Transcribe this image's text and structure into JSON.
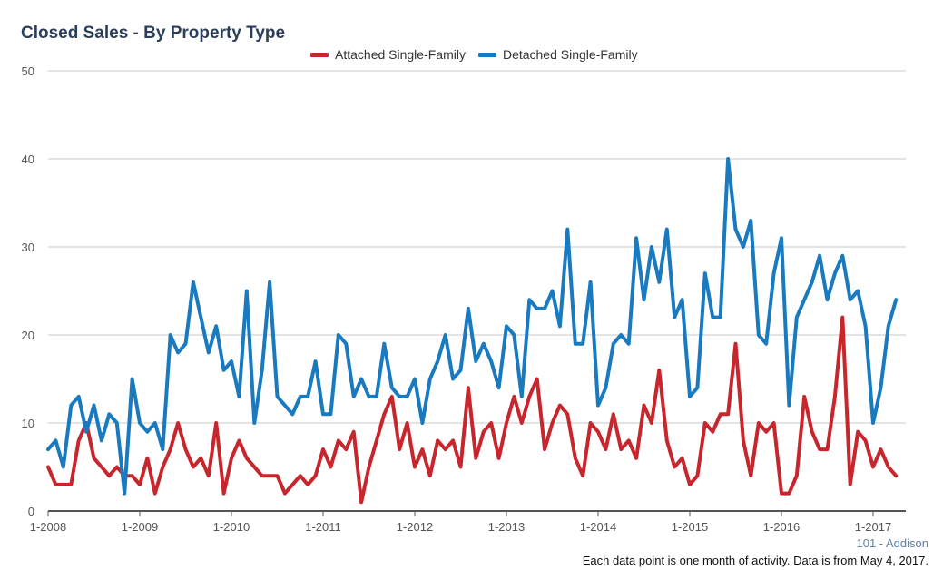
{
  "chart_data": {
    "type": "line",
    "title": "Closed Sales - By Property Type",
    "xlabel": "",
    "ylabel": "",
    "ylim": [
      0,
      50
    ],
    "yticks": [
      0,
      10,
      20,
      30,
      40,
      50
    ],
    "x_tick_labels": [
      "1-2008",
      "1-2009",
      "1-2010",
      "1-2011",
      "1-2012",
      "1-2013",
      "1-2014",
      "1-2015",
      "1-2016",
      "1-2017"
    ],
    "x_start": "2008-01",
    "x_end": "2017-04",
    "grid": true,
    "legend_position": "top-center",
    "series": [
      {
        "name": "Attached Single-Family",
        "color": "#c8262d",
        "values": [
          5,
          3,
          3,
          3,
          8,
          10,
          6,
          5,
          4,
          5,
          4,
          4,
          3,
          6,
          2,
          5,
          7,
          10,
          7,
          5,
          6,
          4,
          10,
          2,
          6,
          8,
          6,
          5,
          4,
          4,
          4,
          2,
          3,
          4,
          3,
          4,
          7,
          5,
          8,
          7,
          9,
          1,
          5,
          8,
          11,
          13,
          7,
          10,
          5,
          7,
          4,
          8,
          7,
          8,
          5,
          14,
          6,
          9,
          10,
          6,
          10,
          13,
          10,
          13,
          15,
          7,
          10,
          12,
          11,
          6,
          4,
          10,
          9,
          7,
          11,
          7,
          8,
          6,
          12,
          10,
          16,
          8,
          5,
          6,
          3,
          4,
          10,
          9,
          11,
          11,
          19,
          8,
          4,
          10,
          9,
          10,
          2,
          2,
          4,
          13,
          9,
          7,
          7,
          13,
          22,
          3,
          9,
          8,
          5,
          7,
          5,
          4
        ]
      },
      {
        "name": "Detached Single-Family",
        "color": "#1a7abf",
        "values": [
          7,
          8,
          5,
          12,
          13,
          9,
          12,
          8,
          11,
          10,
          2,
          15,
          10,
          9,
          10,
          7,
          20,
          18,
          19,
          26,
          22,
          18,
          21,
          16,
          17,
          13,
          25,
          10,
          16,
          26,
          13,
          12,
          11,
          13,
          13,
          17,
          11,
          11,
          20,
          19,
          13,
          15,
          13,
          13,
          19,
          14,
          13,
          13,
          15,
          10,
          15,
          17,
          20,
          15,
          16,
          23,
          17,
          19,
          17,
          14,
          21,
          20,
          13,
          24,
          23,
          23,
          25,
          21,
          32,
          19,
          19,
          26,
          12,
          14,
          19,
          20,
          19,
          31,
          24,
          30,
          26,
          32,
          22,
          24,
          13,
          14,
          27,
          22,
          22,
          40,
          32,
          30,
          33,
          20,
          19,
          27,
          31,
          12,
          22,
          24,
          26,
          29,
          24,
          27,
          29,
          24,
          25,
          21,
          10,
          14,
          21,
          24
        ]
      }
    ]
  },
  "source_label": "101 - Addison",
  "footnote": "Each data point is one month of activity. Data is from May 4, 2017."
}
